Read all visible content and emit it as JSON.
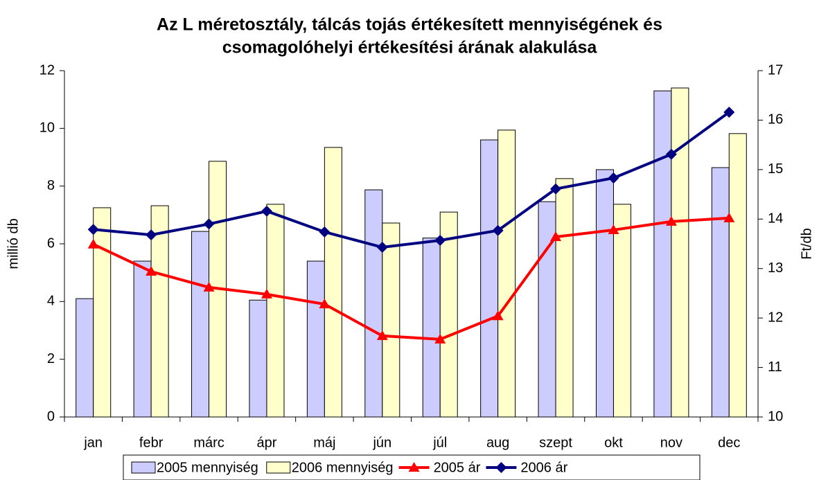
{
  "chart_data": {
    "type": "bar-line",
    "title": [
      "Az L méretosztály, tálcás tojás értékesített mennyiségének és",
      "csomagolóhelyi értékesítési árának alakulása"
    ],
    "ylabel": "millió db",
    "y2label": "Ft/db",
    "categories": [
      "jan",
      "febr",
      "márc",
      "ápr",
      "máj",
      "jún",
      "júl",
      "aug",
      "szept",
      "okt",
      "nov",
      "dec"
    ],
    "ylim": [
      0,
      12
    ],
    "yticks": [
      0,
      2,
      4,
      6,
      8,
      10,
      12
    ],
    "y2lim": [
      10,
      17
    ],
    "y2ticks": [
      10,
      11,
      12,
      13,
      14,
      15,
      16,
      17
    ],
    "legend": "bottom",
    "series": [
      {
        "name": "2005 mennyiség",
        "kind": "bar",
        "color": "#ccccff",
        "values": [
          4.1,
          5.4,
          6.43,
          4.05,
          5.4,
          7.87,
          6.2,
          9.6,
          7.46,
          8.57,
          11.3,
          8.64
        ]
      },
      {
        "name": "2006 mennyiség",
        "kind": "bar",
        "color": "#ffffcc",
        "values": [
          7.25,
          7.32,
          8.86,
          7.37,
          9.34,
          6.72,
          7.1,
          9.94,
          8.26,
          7.37,
          11.4,
          9.82
        ]
      },
      {
        "name": "2005 ár",
        "kind": "line",
        "marker": "triangle",
        "axis": "y2",
        "color": "#ff0000",
        "values": [
          13.49,
          12.94,
          12.62,
          12.48,
          12.28,
          11.64,
          11.57,
          12.04,
          13.64,
          13.78,
          13.95,
          14.02
        ]
      },
      {
        "name": "2006 ár",
        "kind": "line",
        "marker": "diamond",
        "axis": "y2",
        "color": "#000080",
        "values": [
          13.79,
          13.68,
          13.9,
          14.16,
          13.74,
          13.43,
          13.57,
          13.77,
          14.61,
          14.83,
          15.31,
          16.16
        ]
      }
    ]
  }
}
